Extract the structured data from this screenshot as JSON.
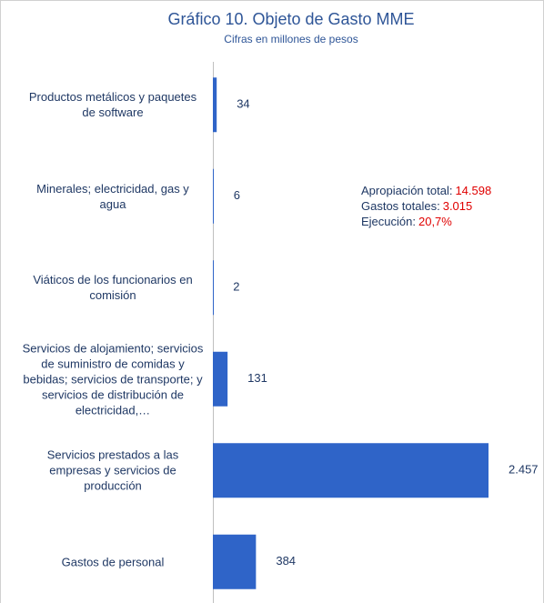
{
  "chart_data": {
    "type": "bar",
    "orientation": "horizontal",
    "title": "Gráfico 10. Objeto de Gasto MME",
    "subtitle": "Cifras en millones de pesos",
    "categories": [
      "Productos metálicos y paquetes de software",
      "Minerales; electricidad, gas y agua",
      "Viáticos de los funcionarios en comisión",
      "Servicios de alojamiento; servicios de suministro de comidas y bebidas; servicios de transporte; y servicios de distribución de electricidad,…",
      "Servicios prestados a las empresas y servicios de producción",
      "Gastos de personal"
    ],
    "values": [
      34,
      6,
      2,
      131,
      2457,
      384
    ],
    "value_labels": [
      "34",
      "6",
      "2",
      "131",
      "2.457",
      "384"
    ],
    "color": "#2f64c8",
    "annotations": [
      {
        "label": "Apropiación total:",
        "value": "14.598"
      },
      {
        "label": "Gastos totales:",
        "value": "3.015"
      },
      {
        "label": "Ejecución:",
        "value": "20,7%"
      }
    ]
  }
}
